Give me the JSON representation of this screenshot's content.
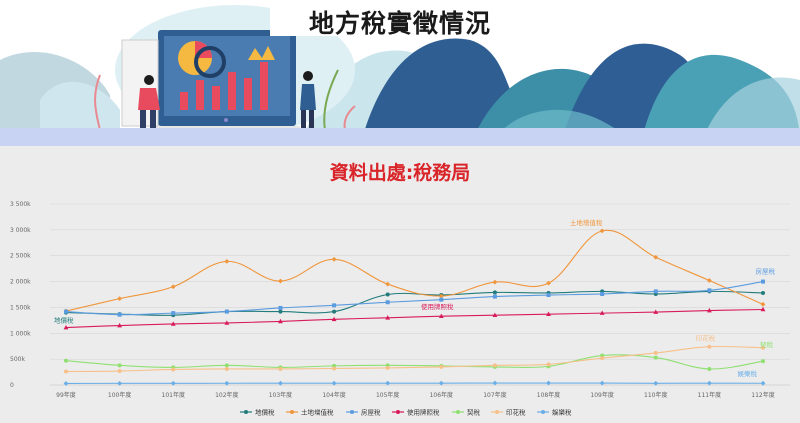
{
  "header": {
    "title": "地方稅實徵情況"
  },
  "source_label": "資料出處:稅務局",
  "colors": {
    "地價稅": "#227c7c",
    "土地增值稅": "#f0963c",
    "房屋稅": "#5b9be0",
    "使用牌照稅": "#d81b5a",
    "契稅": "#8fe070",
    "印花稅": "#f7c08a",
    "娛樂稅": "#6aaee8"
  },
  "chart_data": {
    "type": "line",
    "title": "",
    "xlabel": "",
    "ylabel": "",
    "categories": [
      "99年度",
      "100年度",
      "101年度",
      "102年度",
      "103年度",
      "104年度",
      "105年度",
      "106年度",
      "107年度",
      "108年度",
      "109年度",
      "110年度",
      "111年度",
      "112年度"
    ],
    "ylim": [
      0,
      3500
    ],
    "yticks": [
      "0",
      "500k",
      "1 000k",
      "1 500k",
      "2 000k",
      "2 500k",
      "3 000k",
      "3 500k"
    ],
    "grid": true,
    "legend_position": "bottom",
    "series": [
      {
        "name": "地價稅",
        "values": [
          1400,
          1370,
          1350,
          1420,
          1420,
          1420,
          1750,
          1740,
          1790,
          1780,
          1810,
          1760,
          1810,
          1780
        ],
        "label": "地價稅",
        "label_index": 0
      },
      {
        "name": "土地增值稅",
        "values": [
          1430,
          1670,
          1900,
          2390,
          2010,
          2430,
          1950,
          1720,
          1990,
          1970,
          2980,
          2470,
          2020,
          1560
        ],
        "label": "土地增值稅",
        "label_index": 10
      },
      {
        "name": "房屋稅",
        "values": [
          1420,
          1360,
          1390,
          1420,
          1490,
          1540,
          1600,
          1650,
          1710,
          1740,
          1760,
          1810,
          1830,
          2000
        ],
        "label": "房屋稅",
        "label_index": 13
      },
      {
        "name": "使用牌照稅",
        "values": [
          1110,
          1150,
          1180,
          1200,
          1230,
          1270,
          1300,
          1330,
          1350,
          1370,
          1390,
          1410,
          1440,
          1460
        ],
        "label": "使用牌照稅",
        "label_index": 7
      },
      {
        "name": "契稅",
        "values": [
          470,
          380,
          340,
          380,
          340,
          370,
          380,
          370,
          350,
          360,
          570,
          530,
          310,
          460
        ],
        "label": "契稅",
        "label_index": 13
      },
      {
        "name": "印花稅",
        "values": [
          260,
          270,
          300,
          310,
          310,
          320,
          330,
          350,
          380,
          400,
          520,
          620,
          740,
          720
        ],
        "label": "印花稅",
        "label_index": 12
      },
      {
        "name": "娛樂稅",
        "values": [
          30,
          32,
          33,
          34,
          35,
          35,
          36,
          36,
          38,
          38,
          37,
          33,
          36,
          34
        ],
        "label": "娛樂稅",
        "label_index": 13
      }
    ]
  }
}
